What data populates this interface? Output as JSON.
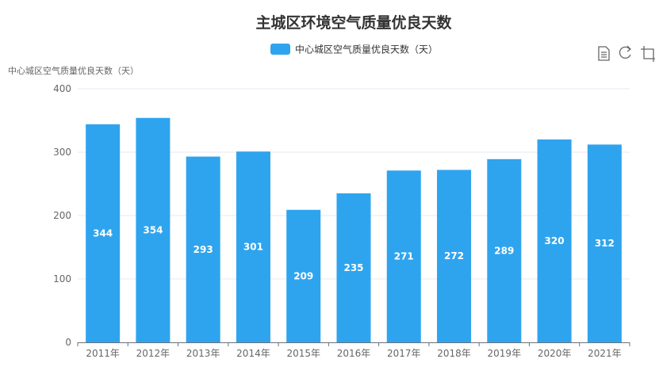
{
  "chart_data": {
    "type": "bar",
    "title": "主城区环境空气质量优良天数",
    "ylabel": "中心城区空气质量优良天数（天）",
    "xlabel": "",
    "categories": [
      "2011年",
      "2012年",
      "2013年",
      "2014年",
      "2015年",
      "2016年",
      "2017年",
      "2018年",
      "2019年",
      "2020年",
      "2021年"
    ],
    "series": [
      {
        "name": "中心城区空气质量优良天数（天）",
        "values": [
          344,
          354,
          293,
          301,
          209,
          235,
          271,
          272,
          289,
          320,
          312
        ]
      }
    ],
    "ylim": [
      0,
      400
    ],
    "yticks": [
      0,
      100,
      200,
      300,
      400
    ],
    "grid": true,
    "legend": "top-center",
    "data_labels": "inside-bar",
    "colors": {
      "bar": "#2fa4ee",
      "label": "#ffffff",
      "grid": "#e6e9f2",
      "axis": "#6e7079"
    }
  },
  "toolbox": {
    "icons": [
      "data-view-icon",
      "restore-icon",
      "crop-icon"
    ]
  }
}
